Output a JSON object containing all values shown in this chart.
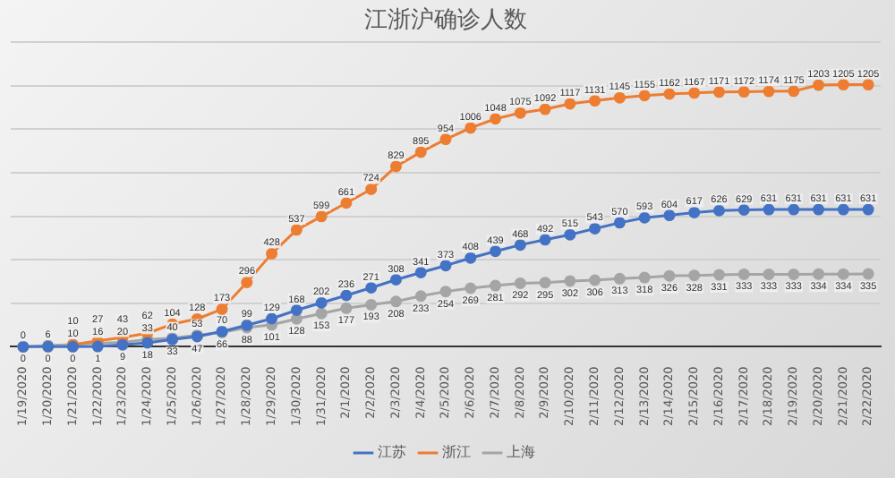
{
  "chart_data": {
    "type": "line",
    "title": "江浙沪确诊人数",
    "categories": [
      "1/19/2020",
      "1/20/2020",
      "1/21/2020",
      "1/22/2020",
      "1/23/2020",
      "1/24/2020",
      "1/25/2020",
      "1/26/2020",
      "1/27/2020",
      "1/28/2020",
      "1/29/2020",
      "1/30/2020",
      "1/31/2020",
      "2/1/2020",
      "2/2/2020",
      "2/3/2020",
      "2/4/2020",
      "2/5/2020",
      "2/6/2020",
      "2/7/2020",
      "2/8/2020",
      "2/9/2020",
      "2/10/2020",
      "2/11/2020",
      "2/12/2020",
      "2/13/2020",
      "2/14/2020",
      "2/15/2020",
      "2/16/2020",
      "2/17/2020",
      "2/18/2020",
      "2/19/2020",
      "2/20/2020",
      "2/21/2020",
      "2/22/2020"
    ],
    "series": [
      {
        "name": "江苏",
        "color": "#4472c4",
        "values": [
          0,
          0,
          0,
          1,
          9,
          18,
          33,
          47,
          70,
          99,
          129,
          168,
          202,
          236,
          271,
          308,
          341,
          373,
          408,
          439,
          468,
          492,
          515,
          543,
          570,
          593,
          604,
          617,
          626,
          629,
          631,
          631,
          631,
          631,
          631
        ]
      },
      {
        "name": "浙江",
        "color": "#ed7d31",
        "values": [
          null,
          null,
          10,
          27,
          43,
          62,
          104,
          128,
          173,
          296,
          428,
          537,
          599,
          661,
          724,
          829,
          895,
          954,
          1006,
          1048,
          1075,
          1092,
          1117,
          1131,
          1145,
          1155,
          1162,
          1167,
          1171,
          1172,
          1174,
          1175,
          1203,
          1205,
          1205
        ]
      },
      {
        "name": "上海",
        "color": "#a5a5a5",
        "values": [
          0,
          6,
          10,
          16,
          20,
          33,
          40,
          53,
          66,
          88,
          101,
          128,
          153,
          177,
          193,
          208,
          233,
          254,
          269,
          281,
          292,
          295,
          302,
          306,
          313,
          318,
          326,
          328,
          331,
          333,
          333,
          333,
          334,
          334,
          335
        ]
      }
    ],
    "tick_labels": "x",
    "grid": "y",
    "legend": "bottom",
    "marker": "circle",
    "line_style": "solid",
    "data_labels": true
  }
}
